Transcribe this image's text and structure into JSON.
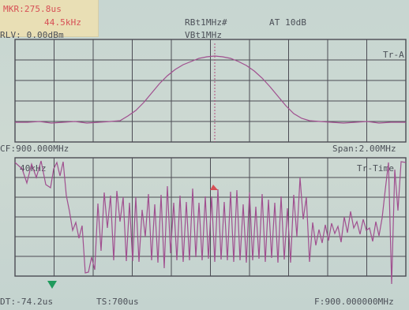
{
  "marker": {
    "label": "MKR:275.8us",
    "value": "44.5kHz"
  },
  "header": {
    "rbw": "RBt1MHz#",
    "att": "AT 10dB",
    "vbw": "VBt1MHz",
    "ref_level": "RLV: 0.00dBm"
  },
  "upper_panel": {
    "trace_label": "Tr-A"
  },
  "mid_info": {
    "center_frequency": "CF:900.000MHz",
    "span": "Span:2.00MHz"
  },
  "lower_panel": {
    "scale_label": "40kHz",
    "trace_label": "Tr-Time"
  },
  "footer": {
    "delta_time": "DT:-74.2us",
    "sweep_time": "TS:700us",
    "frequency": "F:900.000000MHz"
  },
  "colors": {
    "trace": "#a04f8f",
    "marker": "#d74f55",
    "grid": "#4c4c54",
    "text": "#4b4f57",
    "background": "#c9d7d2",
    "marker_box": "#e9dfb5",
    "green_marker": "#1f9a5c"
  }
}
